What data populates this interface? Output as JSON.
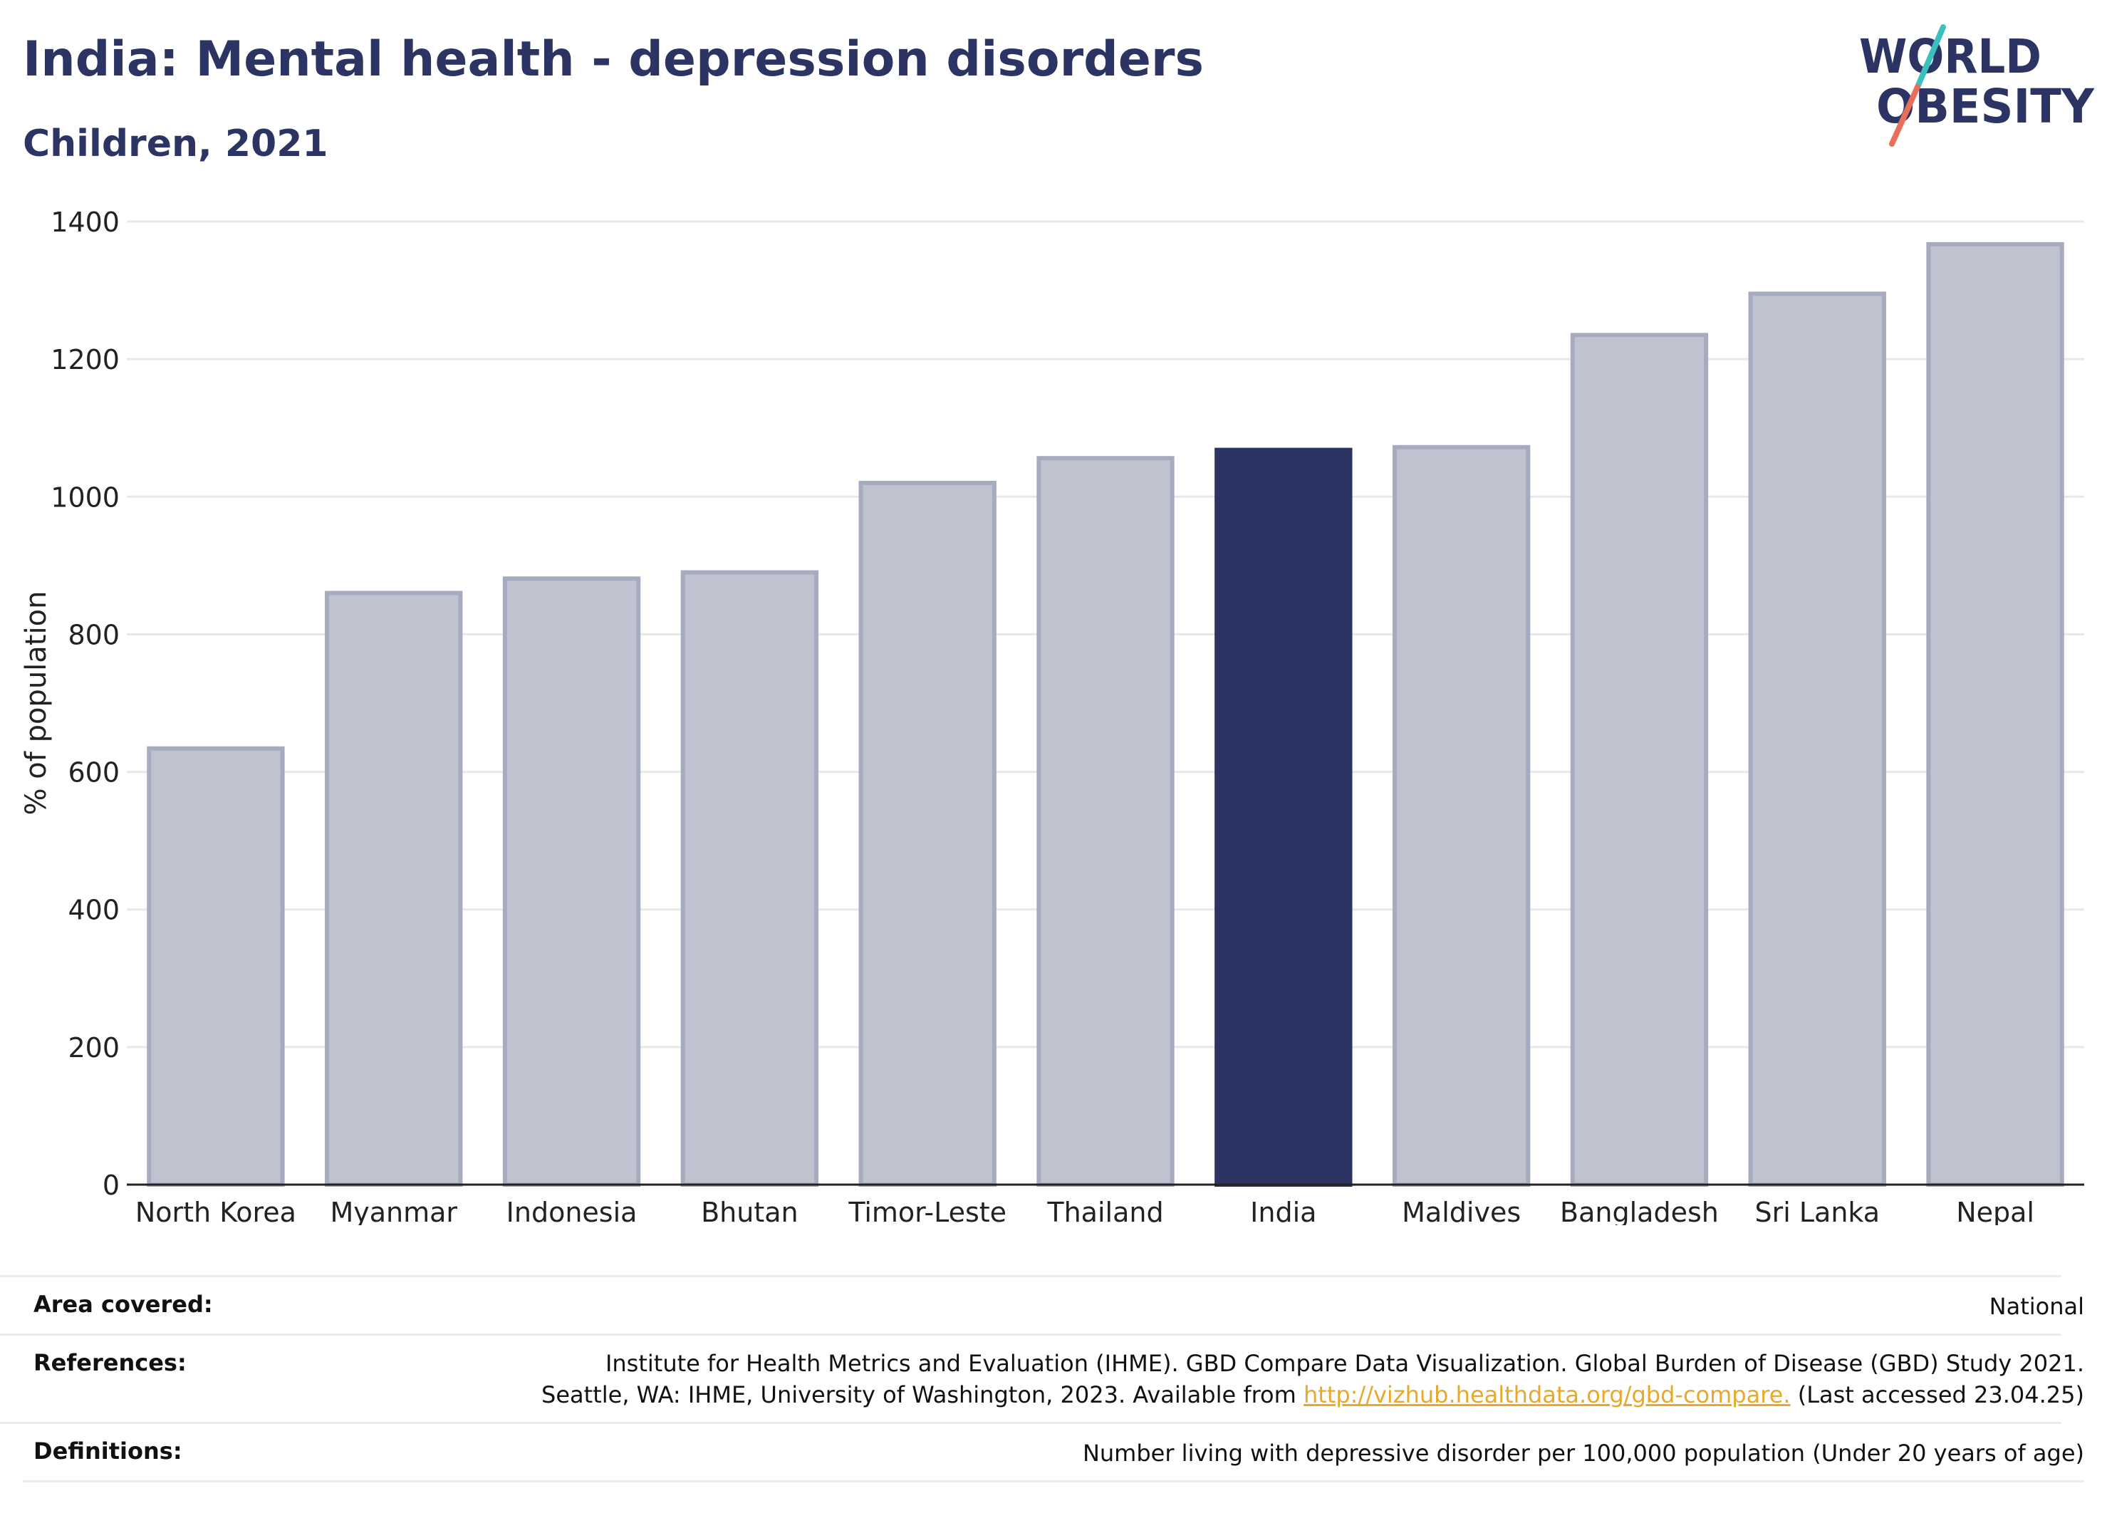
{
  "header": {
    "title": "India: Mental health - depression disorders",
    "subtitle": "Children, 2021"
  },
  "logo": {
    "line1": "WORLD",
    "line2": "OBESITY",
    "colors": {
      "text": "#2b3462",
      "slash_top": "#3bbfbf",
      "slash_bottom": "#e8705a"
    }
  },
  "chart_data": {
    "type": "bar",
    "categories": [
      "North Korea",
      "Myanmar",
      "Indonesia",
      "Bhutan",
      "Timor-Leste",
      "Thailand",
      "India",
      "Maldives",
      "Bangladesh",
      "Sri Lanka",
      "Nepal"
    ],
    "values": [
      634,
      860,
      881,
      890,
      1020,
      1056,
      1068,
      1072,
      1235,
      1295,
      1367
    ],
    "highlight": "India",
    "ylabel": "% of population",
    "xlabel": "",
    "ylim": [
      0,
      1400
    ],
    "yticks": [
      0,
      200,
      400,
      600,
      800,
      1000,
      1200,
      1400
    ],
    "grid": true,
    "colors": {
      "bar": "#bfc3d0",
      "bar_border": "#a6abbf",
      "highlight": "#2b3462"
    }
  },
  "meta": {
    "area": {
      "label": "Area covered:",
      "value": "National"
    },
    "references": {
      "label": "References:",
      "line1": "Institute for Health Metrics and Evaluation (IHME). GBD Compare Data Visualization. Global Burden of Disease (GBD) Study 2021.",
      "line2_prefix": "Seattle, WA: IHME, University of Washington, 2023. Available from ",
      "link": "http://vizhub.healthdata.org/gbd-compare.",
      "line2_suffix": " (Last accessed 23.04.25)"
    },
    "definitions": {
      "label": "Definitions:",
      "value": "Number living with depressive disorder per 100,000 population (Under 20 years of age)"
    }
  }
}
